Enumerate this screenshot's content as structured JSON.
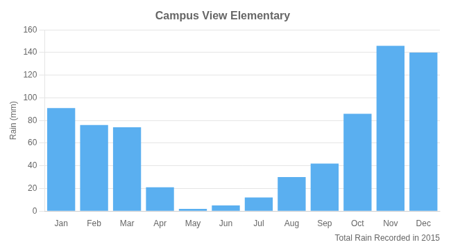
{
  "chart_data": {
    "type": "bar",
    "title": "Campus View Elementary",
    "xlabel": "Total Rain Recorded in 2015",
    "ylabel": "Rain (mm)",
    "categories": [
      "Jan",
      "Feb",
      "Mar",
      "Apr",
      "May",
      "Jun",
      "Jul",
      "Aug",
      "Sep",
      "Oct",
      "Nov",
      "Dec"
    ],
    "values": [
      91,
      76,
      74,
      21,
      2,
      5,
      12,
      30,
      42,
      86,
      146,
      140
    ],
    "color": "#5aaff0",
    "ylim": [
      0,
      160
    ],
    "yticks": [
      0,
      20,
      40,
      60,
      80,
      100,
      120,
      140,
      160
    ],
    "grid": true
  }
}
